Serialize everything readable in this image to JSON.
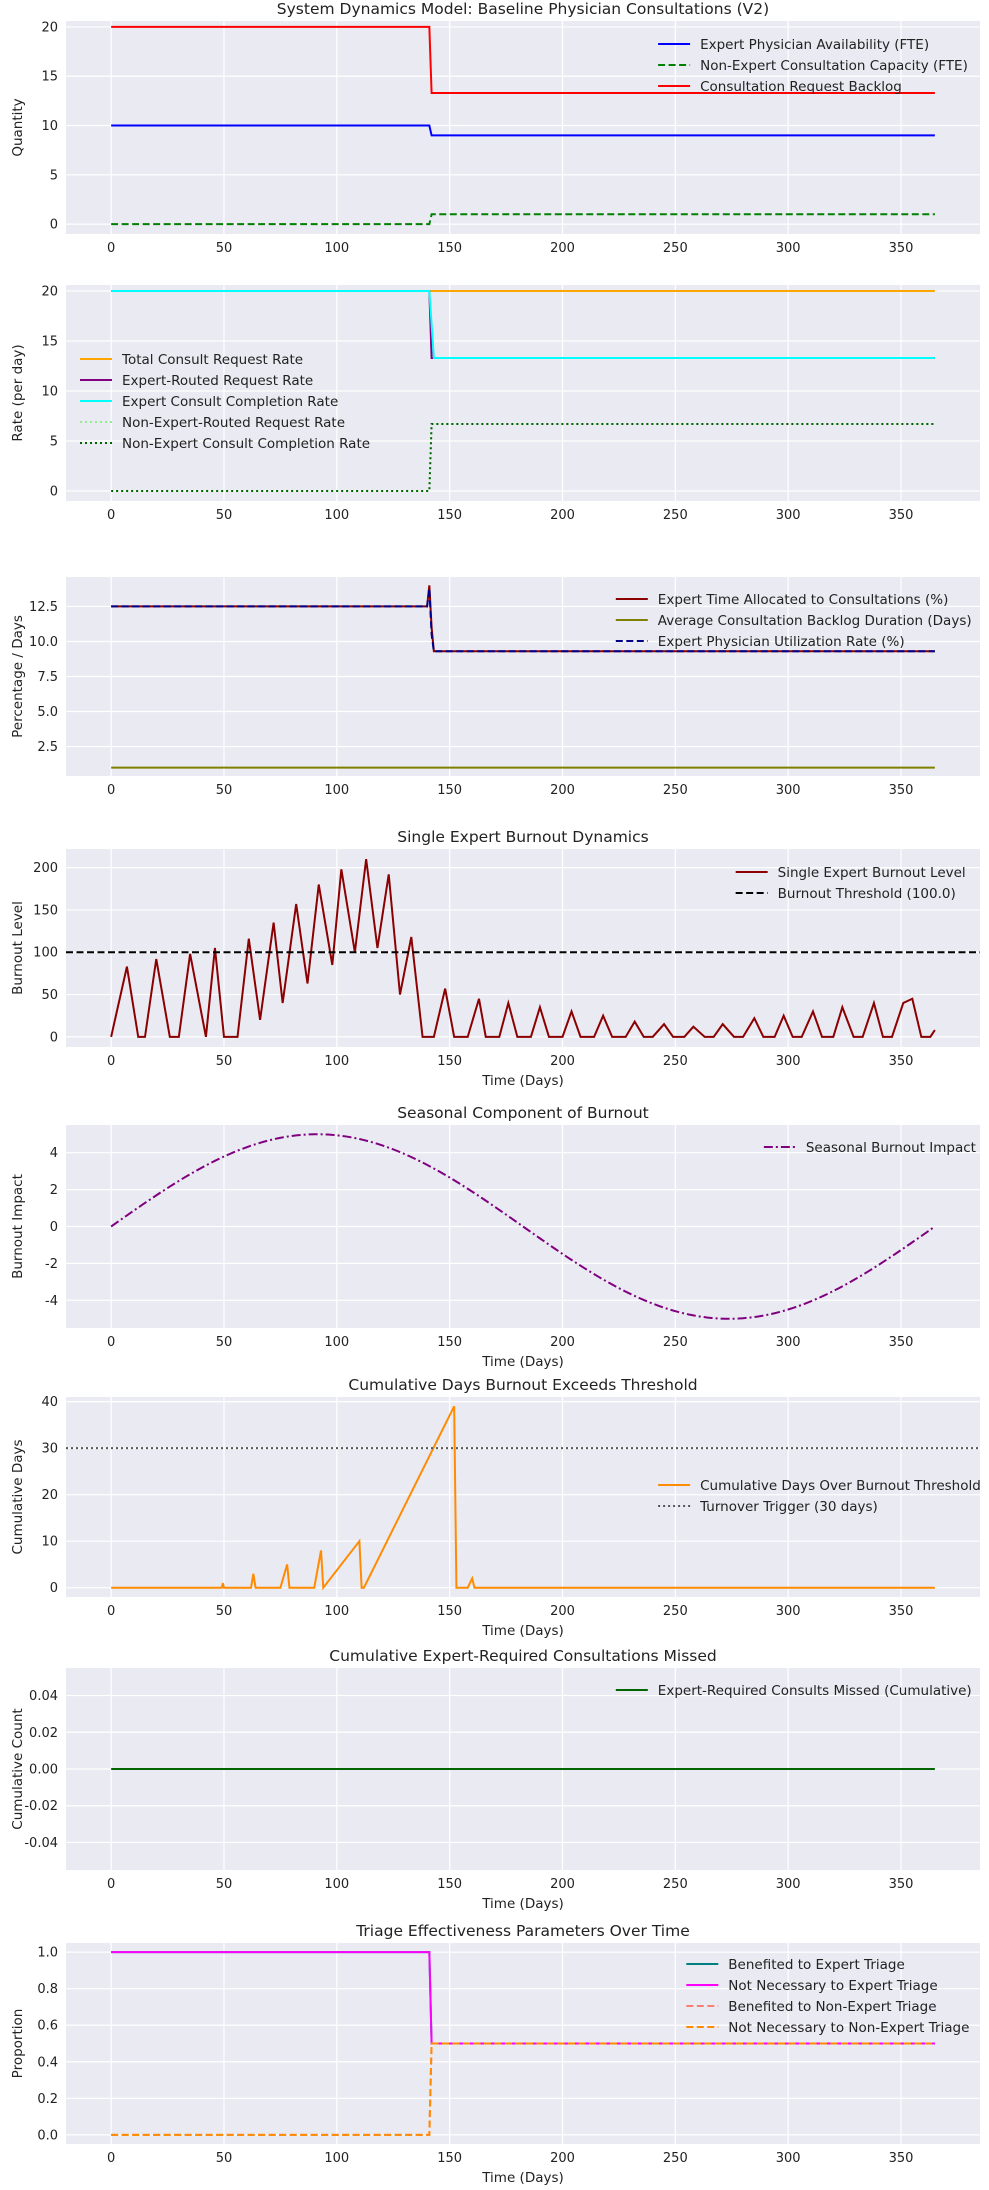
{
  "figure": {
    "background": "#ffffff",
    "axes_bg": "#eaeaf2",
    "grid_color": "#ffffff"
  },
  "chart_data": [
    {
      "type": "line",
      "title": "System Dynamics Model: Baseline Physician Consultations (V2)",
      "xlabel": "",
      "ylabel": "Quantity",
      "xlim": [
        -20,
        385
      ],
      "ylim": [
        -1,
        20.6
      ],
      "xticks": [
        0,
        50,
        100,
        150,
        200,
        250,
        300,
        350
      ],
      "yticks": [
        0,
        5,
        10,
        15,
        20
      ],
      "legend": "top-right",
      "series": [
        {
          "name": "Expert Physician Availability (FTE)",
          "color": "#0000ff",
          "dash": "solid",
          "x": [
            0,
            141,
            142,
            365
          ],
          "y": [
            10,
            10,
            9,
            9
          ]
        },
        {
          "name": "Non-Expert Consultation Capacity (FTE)",
          "color": "#008000",
          "dash": "dashed",
          "x": [
            0,
            141,
            142,
            365
          ],
          "y": [
            0,
            0,
            1,
            1
          ]
        },
        {
          "name": "Consultation Request Backlog",
          "color": "#ff0000",
          "dash": "solid",
          "x": [
            0,
            141,
            142,
            365
          ],
          "y": [
            20,
            20,
            13.3,
            13.3
          ]
        }
      ]
    },
    {
      "type": "line",
      "title": "",
      "xlabel": "",
      "ylabel": "Rate (per day)",
      "xlim": [
        -20,
        385
      ],
      "ylim": [
        -1,
        20.6
      ],
      "xticks": [
        0,
        50,
        100,
        150,
        200,
        250,
        300,
        350
      ],
      "yticks": [
        0,
        5,
        10,
        15,
        20
      ],
      "legend": "center-left",
      "series": [
        {
          "name": "Total Consult Request Rate",
          "color": "#ffa500",
          "dash": "solid",
          "x": [
            0,
            365
          ],
          "y": [
            20,
            20
          ]
        },
        {
          "name": "Expert-Routed Request Rate",
          "color": "#800080",
          "dash": "solid",
          "x": [
            0,
            141,
            142,
            365
          ],
          "y": [
            20,
            20,
            13.3,
            13.3
          ]
        },
        {
          "name": "Expert Consult Completion Rate",
          "color": "#00ffff",
          "dash": "solid",
          "x": [
            0,
            141,
            143,
            365
          ],
          "y": [
            20,
            20,
            13.3,
            13.3
          ]
        },
        {
          "name": "Non-Expert-Routed Request Rate",
          "color": "#90ee90",
          "dash": "dotted",
          "x": [
            0,
            141,
            142,
            365
          ],
          "y": [
            0,
            0,
            6.7,
            6.7
          ]
        },
        {
          "name": "Non-Expert Consult Completion Rate",
          "color": "#006400",
          "dash": "dotted",
          "x": [
            0,
            141,
            142,
            365
          ],
          "y": [
            0,
            0,
            6.7,
            6.7
          ]
        }
      ]
    },
    {
      "type": "line",
      "title": "",
      "xlabel": "",
      "ylabel": "Percentage / Days",
      "xlim": [
        -20,
        385
      ],
      "ylim": [
        0.4,
        14.6
      ],
      "xticks": [
        0,
        50,
        100,
        150,
        200,
        250,
        300,
        350
      ],
      "yticks": [
        2.5,
        5.0,
        7.5,
        10.0,
        12.5
      ],
      "yticklabels": [
        "2.5",
        "5.0",
        "7.5",
        "10.0",
        "12.5"
      ],
      "legend": "top-right",
      "series": [
        {
          "name": "Expert Time Allocated to Consultations (%)",
          "color": "#8b0000",
          "dash": "solid",
          "x": [
            0,
            140,
            141,
            142,
            143,
            365
          ],
          "y": [
            12.5,
            12.5,
            14,
            11,
            9.3,
            9.3
          ]
        },
        {
          "name": "Average Consultation Backlog Duration (Days)",
          "color": "#808000",
          "dash": "solid",
          "x": [
            0,
            365
          ],
          "y": [
            1,
            1
          ]
        },
        {
          "name": "Expert Physician Utilization Rate (%)",
          "color": "#00008b",
          "dash": "dashed",
          "x": [
            0,
            140,
            141,
            142,
            143,
            365
          ],
          "y": [
            12.5,
            12.5,
            13.8,
            10.5,
            9.3,
            9.3
          ]
        }
      ]
    },
    {
      "type": "line",
      "title": "Single Expert Burnout Dynamics",
      "xlabel": "Time (Days)",
      "ylabel": "Burnout Level",
      "xlim": [
        -20,
        385
      ],
      "ylim": [
        -12,
        222
      ],
      "xticks": [
        0,
        50,
        100,
        150,
        200,
        250,
        300,
        350
      ],
      "yticks": [
        0,
        50,
        100,
        150,
        200
      ],
      "legend": "top-right",
      "series": [
        {
          "name": "Single Expert Burnout Level",
          "color": "#8b0000",
          "dash": "solid",
          "x": [
            0,
            7,
            12,
            15,
            20,
            26,
            30,
            35,
            42,
            46,
            50,
            56,
            61,
            66,
            72,
            76,
            82,
            87,
            92,
            98,
            102,
            108,
            113,
            118,
            123,
            128,
            133,
            138,
            143,
            148,
            152,
            158,
            163,
            166,
            172,
            176,
            180,
            186,
            190,
            194,
            200,
            204,
            208,
            214,
            218,
            222,
            228,
            232,
            236,
            240,
            245,
            249,
            254,
            258,
            263,
            267,
            271,
            276,
            280,
            285,
            289,
            294,
            298,
            302,
            306,
            311,
            315,
            320,
            324,
            329,
            333,
            338,
            342,
            346,
            351,
            355,
            359,
            363,
            365
          ],
          "y": [
            0,
            83,
            0,
            0,
            92,
            0,
            0,
            98,
            0,
            105,
            0,
            0,
            116,
            20,
            135,
            40,
            157,
            63,
            180,
            85,
            198,
            100,
            210,
            105,
            192,
            50,
            118,
            0,
            0,
            57,
            0,
            0,
            45,
            0,
            0,
            40,
            0,
            0,
            35,
            0,
            0,
            30,
            0,
            0,
            25,
            0,
            0,
            18,
            0,
            0,
            15,
            0,
            0,
            12,
            0,
            0,
            15,
            0,
            0,
            22,
            0,
            0,
            25,
            0,
            0,
            30,
            0,
            0,
            35,
            0,
            0,
            40,
            0,
            0,
            40,
            45,
            0,
            0,
            8
          ]
        },
        {
          "name": "Burnout Threshold (100.0)",
          "color": "#000000",
          "dash": "dashed",
          "x": [
            -20,
            385
          ],
          "y": [
            100,
            100
          ]
        }
      ]
    },
    {
      "type": "line",
      "title": "Seasonal Component of Burnout",
      "xlabel": "Time (Days)",
      "ylabel": "Burnout Impact",
      "xlim": [
        -20,
        385
      ],
      "ylim": [
        -5.5,
        5.5
      ],
      "xticks": [
        0,
        50,
        100,
        150,
        200,
        250,
        300,
        350
      ],
      "yticks": [
        -4,
        -2,
        0,
        2,
        4
      ],
      "legend": "top-right",
      "formula": "5*sin(2*pi*t/365)",
      "series": [
        {
          "name": "Seasonal Burnout Impact",
          "color": "#800080",
          "dash": "dashdot",
          "x": [
            0,
            15,
            30,
            45,
            60,
            75,
            91,
            105,
            120,
            135,
            150,
            165,
            182,
            195,
            210,
            225,
            240,
            255,
            274,
            285,
            300,
            315,
            330,
            345,
            365
          ],
          "y": [
            0,
            1.27,
            2.46,
            3.5,
            4.32,
            4.84,
            5.0,
            4.9,
            4.45,
            3.69,
            2.66,
            1.44,
            0.0,
            -1.11,
            -2.53,
            -3.5,
            -4.29,
            -4.82,
            -5.0,
            -4.92,
            -4.47,
            -3.71,
            -2.68,
            -1.46,
            0
          ]
        }
      ]
    },
    {
      "type": "line",
      "title": "Cumulative Days Burnout Exceeds Threshold",
      "xlabel": "Time (Days)",
      "ylabel": "Cumulative Days",
      "xlim": [
        -20,
        385
      ],
      "ylim": [
        -2,
        41
      ],
      "xticks": [
        0,
        50,
        100,
        150,
        200,
        250,
        300,
        350
      ],
      "yticks": [
        0,
        10,
        20,
        30,
        40
      ],
      "legend": "center-right",
      "series": [
        {
          "name": "Cumulative Days Over Burnout Threshold",
          "color": "#ff8c00",
          "dash": "solid",
          "x": [
            0,
            49,
            49.5,
            50,
            62,
            63,
            64,
            75,
            78,
            79,
            90,
            93,
            94,
            110,
            111,
            112,
            152,
            153,
            158,
            160,
            161,
            365
          ],
          "y": [
            0,
            0,
            1,
            0,
            0,
            3,
            0,
            0,
            5,
            0,
            0,
            8,
            0,
            10,
            0,
            0,
            39,
            0,
            0,
            2,
            0,
            0
          ]
        },
        {
          "name": "Turnover Trigger (30 days)",
          "color": "#555555",
          "dash": "dotted",
          "x": [
            -20,
            385
          ],
          "y": [
            30,
            30
          ]
        }
      ]
    },
    {
      "type": "line",
      "title": "Cumulative Expert-Required Consultations Missed",
      "xlabel": "Time (Days)",
      "ylabel": "Cumulative Count",
      "xlim": [
        -20,
        385
      ],
      "ylim": [
        -0.055,
        0.055
      ],
      "xticks": [
        0,
        50,
        100,
        150,
        200,
        250,
        300,
        350
      ],
      "yticks": [
        -0.04,
        -0.02,
        0.0,
        0.02,
        0.04
      ],
      "yticklabels": [
        "-0.04",
        "-0.02",
        "0.00",
        "0.02",
        "0.04"
      ],
      "legend": "top-right",
      "series": [
        {
          "name": "Expert-Required Consults Missed (Cumulative)",
          "color": "#006400",
          "dash": "solid",
          "x": [
            0,
            365
          ],
          "y": [
            0,
            0
          ]
        }
      ]
    },
    {
      "type": "line",
      "title": "Triage Effectiveness Parameters Over Time",
      "xlabel": "Time (Days)",
      "ylabel": "Proportion",
      "xlim": [
        -20,
        385
      ],
      "ylim": [
        -0.05,
        1.05
      ],
      "xticks": [
        0,
        50,
        100,
        150,
        200,
        250,
        300,
        350
      ],
      "yticks": [
        0.0,
        0.2,
        0.4,
        0.6,
        0.8,
        1.0
      ],
      "yticklabels": [
        "0.0",
        "0.2",
        "0.4",
        "0.6",
        "0.8",
        "1.0"
      ],
      "legend": "top-right",
      "series": [
        {
          "name": "Benefited to Expert Triage",
          "color": "#008080",
          "dash": "solid",
          "x": [
            0,
            141,
            142,
            365
          ],
          "y": [
            1,
            1,
            0.5,
            0.5
          ]
        },
        {
          "name": "Not Necessary to Expert Triage",
          "color": "#ff00ff",
          "dash": "solid",
          "x": [
            0,
            141,
            142,
            365
          ],
          "y": [
            1,
            1,
            0.5,
            0.5
          ]
        },
        {
          "name": "Benefited to Non-Expert Triage",
          "color": "#fa8072",
          "dash": "dashed",
          "x": [
            0,
            141,
            142,
            365
          ],
          "y": [
            0,
            0,
            0.5,
            0.5
          ]
        },
        {
          "name": "Not Necessary to Non-Expert Triage",
          "color": "#ff8c00",
          "dash": "dashed",
          "x": [
            0,
            141,
            142,
            365
          ],
          "y": [
            0,
            0,
            0.5,
            0.5
          ]
        }
      ]
    }
  ]
}
